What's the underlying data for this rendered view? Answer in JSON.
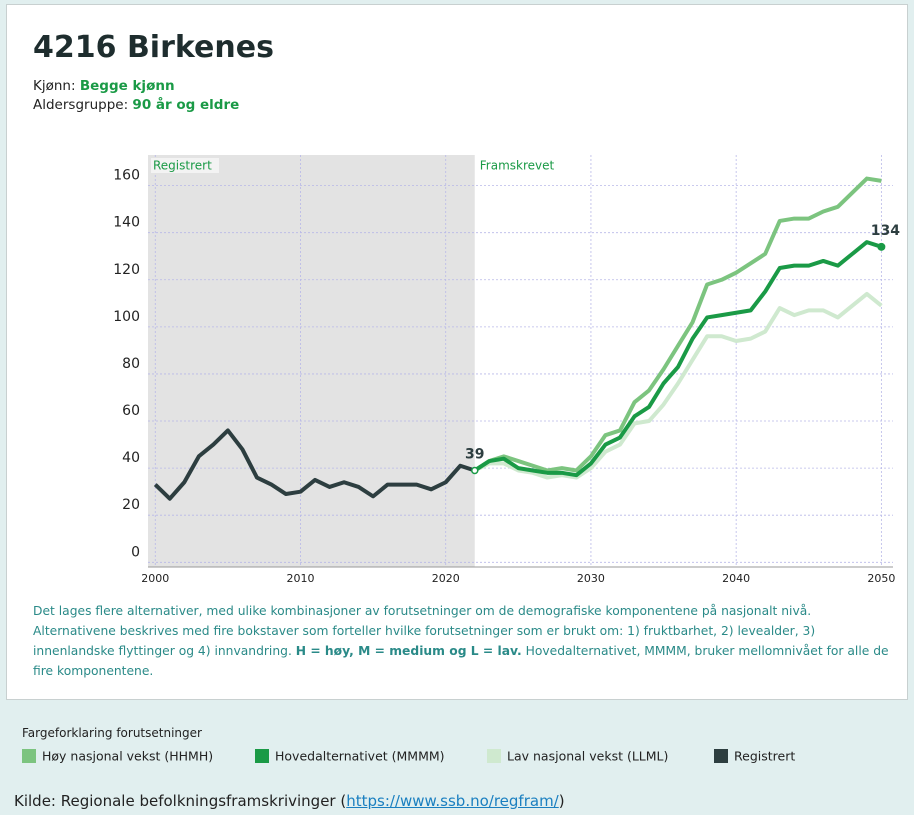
{
  "header": {
    "title": "4216 Birkenes",
    "gender_label": "Kjønn:",
    "gender": "Begge kjønn",
    "age_label": "Aldersgruppe:",
    "age": "90 år og eldre"
  },
  "chart_data": {
    "type": "line",
    "region_labels": [
      "Registrert",
      "Framskrevet"
    ],
    "x": [
      2000,
      2001,
      2002,
      2003,
      2004,
      2005,
      2006,
      2007,
      2008,
      2009,
      2010,
      2011,
      2012,
      2013,
      2014,
      2015,
      2016,
      2017,
      2018,
      2019,
      2020,
      2021,
      2022,
      2023,
      2024,
      2025,
      2026,
      2027,
      2028,
      2029,
      2030,
      2031,
      2032,
      2033,
      2034,
      2035,
      2036,
      2037,
      2038,
      2039,
      2040,
      2041,
      2042,
      2043,
      2044,
      2045,
      2046,
      2047,
      2048,
      2049,
      2050
    ],
    "series": [
      {
        "name": "Høy nasjonal vekst (HHMH)",
        "color": "#7cc47f",
        "values": [
          null,
          null,
          null,
          null,
          null,
          null,
          null,
          null,
          null,
          null,
          null,
          null,
          null,
          null,
          null,
          null,
          null,
          null,
          null,
          null,
          null,
          null,
          39,
          43,
          45,
          43,
          41,
          39,
          40,
          39,
          45,
          54,
          56,
          68,
          73,
          82,
          92,
          102,
          118,
          120,
          123,
          127,
          131,
          145,
          146,
          146,
          149,
          151,
          157,
          163,
          162
        ]
      },
      {
        "name": "Hovedalternativet (MMMM)",
        "color": "#1a9a46",
        "values": [
          null,
          null,
          null,
          null,
          null,
          null,
          null,
          null,
          null,
          null,
          null,
          null,
          null,
          null,
          null,
          null,
          null,
          null,
          null,
          null,
          null,
          null,
          39,
          43,
          44,
          40,
          39,
          38,
          38,
          37,
          42,
          50,
          53,
          62,
          66,
          76,
          83,
          95,
          104,
          105,
          106,
          107,
          115,
          125,
          126,
          126,
          128,
          126,
          131,
          136,
          134
        ]
      },
      {
        "name": "Lav nasjonal vekst (LLML)",
        "color": "#cfe9cf",
        "values": [
          null,
          null,
          null,
          null,
          null,
          null,
          null,
          null,
          null,
          null,
          null,
          null,
          null,
          null,
          null,
          null,
          null,
          null,
          null,
          null,
          null,
          null,
          39,
          42,
          42,
          39,
          38,
          36,
          37,
          36,
          40,
          47,
          50,
          59,
          60,
          67,
          76,
          86,
          96,
          96,
          94,
          95,
          98,
          108,
          105,
          107,
          107,
          104,
          109,
          114,
          109
        ]
      },
      {
        "name": "Registrert",
        "color": "#2d3e40",
        "values": [
          33,
          27,
          34,
          45,
          50,
          56,
          48,
          36,
          33,
          29,
          30,
          35,
          32,
          34,
          32,
          28,
          33,
          33,
          33,
          31,
          34,
          41,
          39,
          null,
          null,
          null,
          null,
          null,
          null,
          null,
          null,
          null,
          null,
          null,
          null,
          null,
          null,
          null,
          null,
          null,
          null,
          null,
          null,
          null,
          null,
          null,
          null,
          null,
          null,
          null,
          null
        ]
      }
    ],
    "xlim": [
      1999.5,
      2050.8
    ],
    "xticks": [
      2000,
      2010,
      2020,
      2030,
      2040,
      2050
    ],
    "ylim": [
      -2,
      173
    ],
    "yticks": [
      0,
      20,
      40,
      60,
      80,
      100,
      120,
      140,
      160
    ],
    "grid": true
  },
  "note": [
    "Det lages flere alternativer, med ulike kombinasjoner av forutsetninger om de demografiske komponentene på nasjonalt nivå. Alternativene beskrives med fire bokstaver som forteller hvilke forutsetninger som er brukt om: 1) fruktbarhet, 2) levealder, 3) innenlandske flyttinger og 4) innvandring. ",
    "H = høy, M = medium og L = lav.",
    " Hovedalternativet, MMMM, bruker mellomnivået for alle de fire komponentene."
  ],
  "legend_title": "Fargeforklaring forutsetninger",
  "source": {
    "prefix": "Kilde: Regionale befolkningsframskrivinger (",
    "link": "https://www.ssb.no/regfram/",
    "suffix": ")"
  }
}
